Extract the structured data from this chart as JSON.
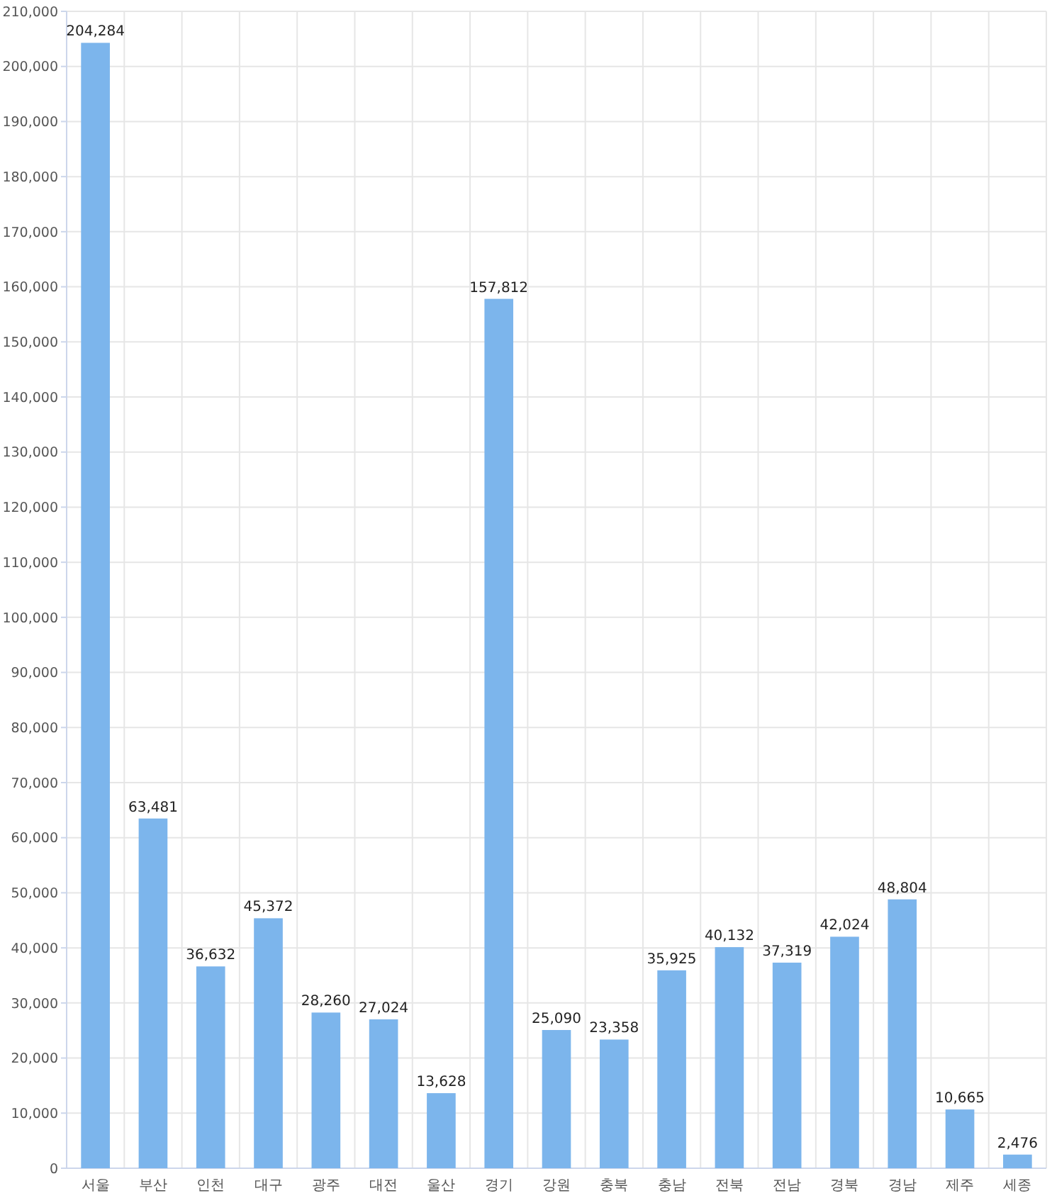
{
  "chart_data": {
    "type": "bar",
    "categories": [
      "서울",
      "부산",
      "인천",
      "대구",
      "광주",
      "대전",
      "울산",
      "경기",
      "강원",
      "충북",
      "충남",
      "전북",
      "전남",
      "경북",
      "경남",
      "제주",
      "세종"
    ],
    "values": [
      204284,
      63481,
      36632,
      45372,
      28260,
      27024,
      13628,
      157812,
      25090,
      23358,
      35925,
      40132,
      37319,
      42024,
      48804,
      10665,
      2476
    ],
    "value_labels": [
      "204,284",
      "63,481",
      "36,632",
      "45,372",
      "28,260",
      "27,024",
      "13,628",
      "157,812",
      "25,090",
      "23,358",
      "35,925",
      "40,132",
      "37,319",
      "42,024",
      "48,804",
      "10,665",
      "2,476"
    ],
    "color": "#7cb5ec",
    "ylim": [
      0,
      210000
    ],
    "yticks": [
      {
        "value": 0,
        "label": "0"
      },
      {
        "value": 10000,
        "label": "10,000"
      },
      {
        "value": 20000,
        "label": "20,000"
      },
      {
        "value": 30000,
        "label": "30,000"
      },
      {
        "value": 40000,
        "label": "40,000"
      },
      {
        "value": 50000,
        "label": "50,000"
      },
      {
        "value": 60000,
        "label": "60,000"
      },
      {
        "value": 70000,
        "label": "70,000"
      },
      {
        "value": 80000,
        "label": "80,000"
      },
      {
        "value": 90000,
        "label": "90,000"
      },
      {
        "value": 100000,
        "label": "100,000"
      },
      {
        "value": 110000,
        "label": "110,000"
      },
      {
        "value": 120000,
        "label": "120,000"
      },
      {
        "value": 130000,
        "label": "130,000"
      },
      {
        "value": 140000,
        "label": "140,000"
      },
      {
        "value": 150000,
        "label": "150,000"
      },
      {
        "value": 160000,
        "label": "160,000"
      },
      {
        "value": 170000,
        "label": "170,000"
      },
      {
        "value": 180000,
        "label": "180,000"
      },
      {
        "value": 190000,
        "label": "190,000"
      },
      {
        "value": 200000,
        "label": "200,000"
      },
      {
        "value": 210000,
        "label": "210,000"
      }
    ],
    "grid": true
  }
}
